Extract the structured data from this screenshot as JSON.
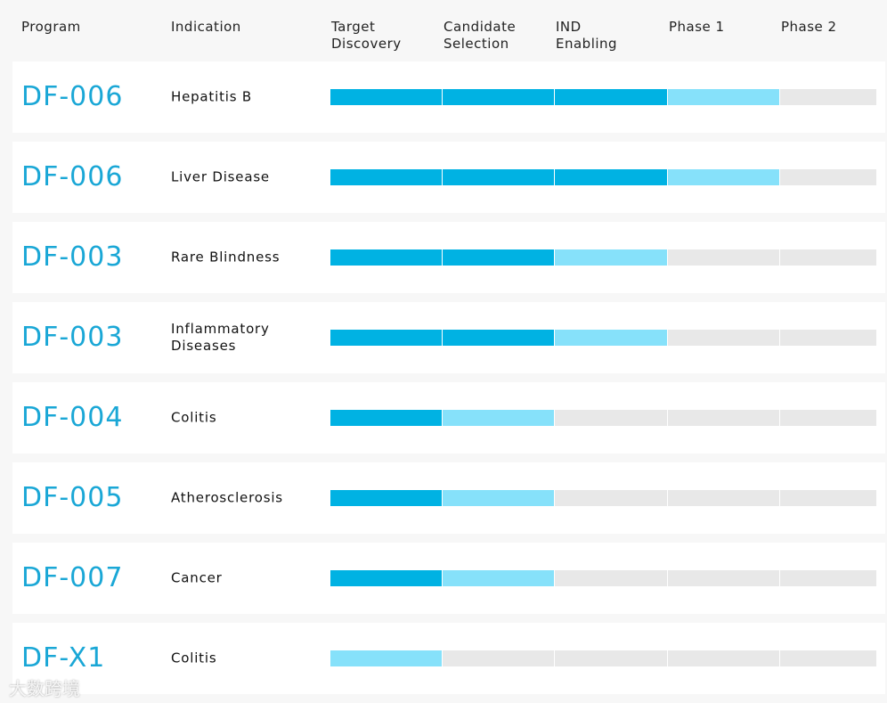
{
  "header": {
    "program": "Program",
    "indication": "Indication",
    "stages": [
      [
        "Target",
        "Discovery"
      ],
      [
        "Candidate",
        "Selection"
      ],
      [
        "IND",
        "Enabling"
      ],
      [
        "Phase 1"
      ],
      [
        "Phase 2"
      ]
    ]
  },
  "status_colors": {
    "done": "#00b2e3",
    "active": "#86e1fa",
    "pending": "#e8e8e8"
  },
  "rows": [
    {
      "program": "DF-006",
      "indication": "Hepatitis B",
      "stages": [
        "done",
        "done",
        "done",
        "active",
        "pending"
      ]
    },
    {
      "program": "DF-006",
      "indication": "Liver Disease",
      "stages": [
        "done",
        "done",
        "done",
        "active",
        "pending"
      ]
    },
    {
      "program": "DF-003",
      "indication": "Rare Blindness",
      "stages": [
        "done",
        "done",
        "active",
        "pending",
        "pending"
      ]
    },
    {
      "program": "DF-003",
      "indication": "Inflammatory Diseases",
      "stages": [
        "done",
        "done",
        "active",
        "pending",
        "pending"
      ]
    },
    {
      "program": "DF-004",
      "indication": "Colitis",
      "stages": [
        "done",
        "active",
        "pending",
        "pending",
        "pending"
      ]
    },
    {
      "program": "DF-005",
      "indication": "Atherosclerosis",
      "stages": [
        "done",
        "active",
        "pending",
        "pending",
        "pending"
      ]
    },
    {
      "program": "DF-007",
      "indication": "Cancer",
      "stages": [
        "done",
        "active",
        "pending",
        "pending",
        "pending"
      ]
    },
    {
      "program": "DF-X1",
      "indication": "Colitis",
      "stages": [
        "active",
        "pending",
        "pending",
        "pending",
        "pending"
      ]
    }
  ],
  "watermark": "大数跨境"
}
